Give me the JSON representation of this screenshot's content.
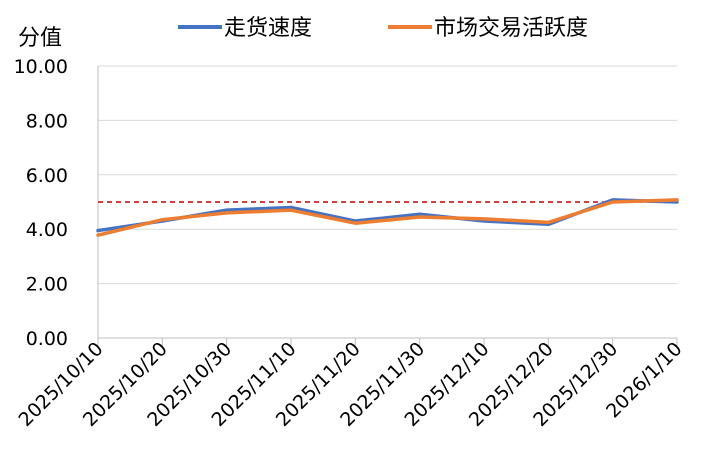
{
  "chart_data": {
    "type": "line",
    "ylabel": "分值",
    "ylim": [
      0,
      10
    ],
    "y_ticks": [
      "0.00",
      "2.00",
      "4.00",
      "6.00",
      "8.00",
      "10.00"
    ],
    "categories": [
      "2025/10/10",
      "2025/10/20",
      "2025/10/30",
      "2025/11/10",
      "2025/11/20",
      "2025/11/30",
      "2025/12/10",
      "2025/12/20",
      "2025/12/30",
      "2026/1/10"
    ],
    "series": [
      {
        "name": "走货速度",
        "color": "#4472C4",
        "values": [
          3.95,
          4.3,
          4.7,
          4.8,
          4.3,
          4.55,
          4.3,
          4.18,
          5.08,
          5.0
        ]
      },
      {
        "name": "市场交易活跃度",
        "color": "#ED7D31",
        "values": [
          3.78,
          4.35,
          4.6,
          4.7,
          4.22,
          4.45,
          4.38,
          4.25,
          5.0,
          5.08
        ]
      }
    ],
    "reference_line": {
      "value": 5,
      "color": "#C00000",
      "style": "dashed"
    },
    "grid": true,
    "legend_position": "top"
  }
}
